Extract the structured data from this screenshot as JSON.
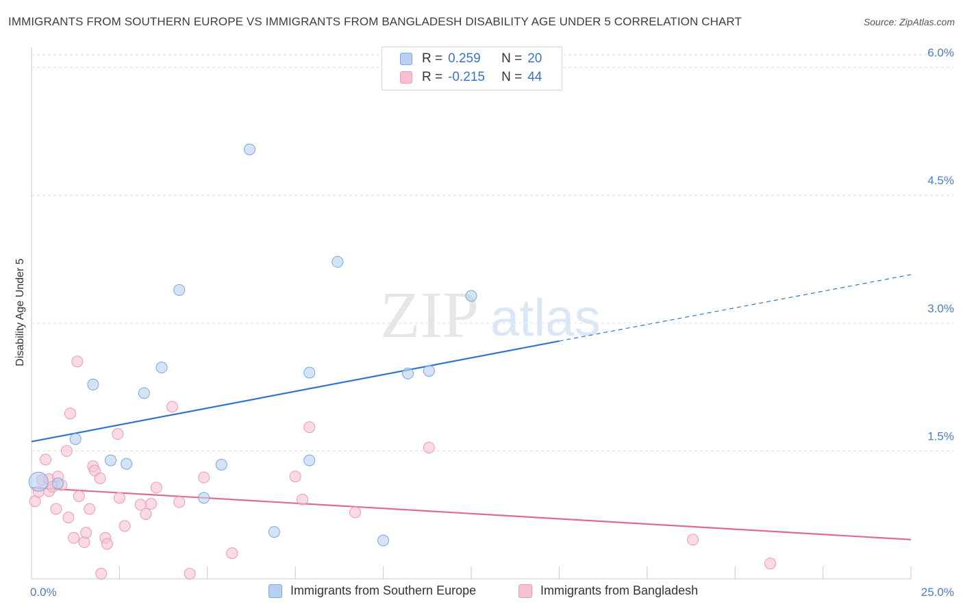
{
  "title": "IMMIGRANTS FROM SOUTHERN EUROPE VS IMMIGRANTS FROM BANGLADESH DISABILITY AGE UNDER 5 CORRELATION CHART",
  "source": "Source: ZipAtlas.com",
  "watermark": {
    "zip": "ZIP",
    "atlas": "atlas"
  },
  "colors": {
    "blue_fill": "#b8d1f3",
    "blue_stroke": "#7aa5e0",
    "blue_line": "#2f74d0",
    "pink_fill": "#f7c1d2",
    "pink_stroke": "#ec9ab3",
    "pink_line": "#e0698f",
    "tick_text": "#4a7cc9"
  },
  "legend": {
    "rows": [
      {
        "r_label": "R =",
        "r_value": "0.259",
        "n_label": "N =",
        "n_value": "20"
      },
      {
        "r_label": "R =",
        "r_value": "-0.215",
        "n_label": "N =",
        "n_value": "44"
      }
    ],
    "series_names": [
      "Immigrants from Southern Europe",
      "Immigrants from Bangladesh"
    ]
  },
  "chart_data": {
    "type": "scatter",
    "xlabel": "",
    "ylabel": "Disability Age Under 5",
    "xlim": [
      0,
      25
    ],
    "ylim": [
      0,
      6.15
    ],
    "x_tick_labels": [
      "0.0%",
      "25.0%"
    ],
    "y_ticks": [
      1.5,
      3.0,
      4.5,
      6.0
    ],
    "y_tick_labels": [
      "1.5%",
      "3.0%",
      "4.5%",
      "6.0%"
    ],
    "grid": true,
    "series": [
      {
        "name": "Immigrants from Southern Europe",
        "points": [
          [
            0.2,
            1.14
          ],
          [
            0.75,
            1.12
          ],
          [
            1.25,
            1.64
          ],
          [
            1.75,
            2.28
          ],
          [
            2.25,
            1.39
          ],
          [
            2.7,
            1.35
          ],
          [
            3.2,
            2.18
          ],
          [
            3.7,
            2.48
          ],
          [
            4.2,
            3.39
          ],
          [
            4.9,
            0.95
          ],
          [
            5.4,
            1.34
          ],
          [
            6.2,
            5.04
          ],
          [
            6.9,
            0.55
          ],
          [
            7.9,
            1.39
          ],
          [
            7.9,
            2.42
          ],
          [
            8.7,
            3.72
          ],
          [
            10.0,
            0.45
          ],
          [
            10.7,
            2.41
          ],
          [
            11.3,
            2.44
          ],
          [
            12.5,
            3.32
          ]
        ],
        "trend": {
          "x0": 0,
          "y0": 1.61,
          "x1": 15,
          "y1": 2.79,
          "dashed_to_x": 25,
          "dashed_to_y": 3.57
        }
      },
      {
        "name": "Immigrants from Bangladesh",
        "points": [
          [
            0.1,
            0.91
          ],
          [
            0.2,
            1.02
          ],
          [
            0.3,
            1.16
          ],
          [
            0.4,
            1.4
          ],
          [
            0.5,
            1.17
          ],
          [
            0.5,
            1.03
          ],
          [
            0.6,
            1.08
          ],
          [
            0.7,
            0.82
          ],
          [
            0.75,
            1.2
          ],
          [
            0.85,
            1.1
          ],
          [
            1.0,
            1.5
          ],
          [
            1.05,
            0.72
          ],
          [
            1.1,
            1.94
          ],
          [
            1.2,
            0.48
          ],
          [
            1.35,
            0.97
          ],
          [
            1.3,
            2.55
          ],
          [
            1.5,
            0.43
          ],
          [
            1.55,
            0.54
          ],
          [
            1.65,
            0.82
          ],
          [
            1.75,
            1.32
          ],
          [
            1.8,
            1.27
          ],
          [
            1.95,
            1.18
          ],
          [
            1.98,
            0.06
          ],
          [
            2.1,
            0.48
          ],
          [
            2.15,
            0.41
          ],
          [
            2.45,
            1.7
          ],
          [
            2.5,
            0.95
          ],
          [
            2.65,
            0.62
          ],
          [
            3.1,
            0.87
          ],
          [
            3.25,
            0.76
          ],
          [
            3.4,
            0.88
          ],
          [
            3.55,
            1.07
          ],
          [
            4.0,
            2.02
          ],
          [
            4.2,
            0.9
          ],
          [
            4.5,
            0.06
          ],
          [
            4.9,
            1.19
          ],
          [
            5.7,
            0.3
          ],
          [
            7.5,
            1.2
          ],
          [
            7.7,
            0.93
          ],
          [
            7.9,
            1.78
          ],
          [
            9.2,
            0.78
          ],
          [
            11.3,
            1.54
          ],
          [
            18.8,
            0.46
          ],
          [
            21.0,
            0.18
          ]
        ],
        "trend": {
          "x0": 0,
          "y0": 1.07,
          "x1": 25,
          "y1": 0.46
        }
      }
    ]
  }
}
